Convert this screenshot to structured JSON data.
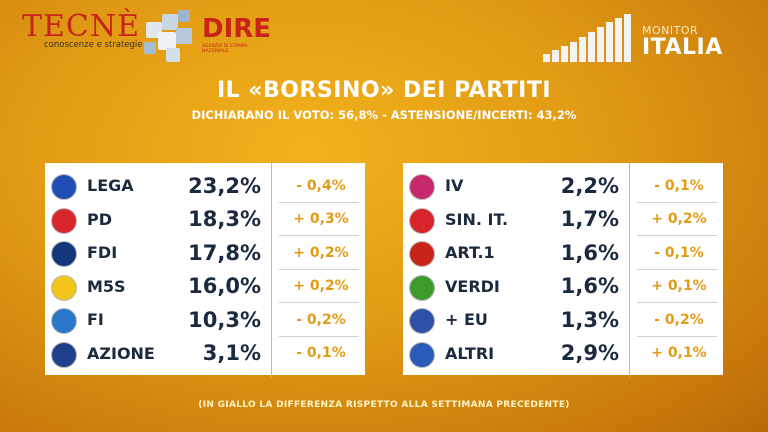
{
  "brand": {
    "tecne_name": "TECNÈ",
    "tecne_tag": "conoscenze e strategie",
    "dire_name": "DIRE",
    "dire_tag": "AGENZIA DI STAMPA NAZIONALE",
    "monitor_small": "MONITOR",
    "monitor_big": "ITALIA"
  },
  "title": "IL «BORSINO» DEI PARTITI",
  "subtitle": "DICHIARANO IL VOTO: 56,8% - ASTENSIONE/INCERTI: 43,2%",
  "left_parties": [
    {
      "name": "LEGA",
      "value": "23,2%",
      "delta": "- 0,4%",
      "logo_color": "#1f4fb5"
    },
    {
      "name": "PD",
      "value": "18,3%",
      "delta": "+ 0,3%",
      "logo_color": "#d8242b"
    },
    {
      "name": "FDI",
      "value": "17,8%",
      "delta": "+ 0,2%",
      "logo_color": "#14367a"
    },
    {
      "name": "M5S",
      "value": "16,0%",
      "delta": "+ 0,2%",
      "logo_color": "#f3c418"
    },
    {
      "name": "FI",
      "value": "10,3%",
      "delta": "- 0,2%",
      "logo_color": "#2a76c8"
    },
    {
      "name": "AZIONE",
      "value": "3,1%",
      "delta": "- 0,1%",
      "logo_color": "#1e3f8c"
    }
  ],
  "right_parties": [
    {
      "name": "IV",
      "value": "2,2%",
      "delta": "- 0,1%",
      "logo_color": "#c72a6b"
    },
    {
      "name": "SIN. IT.",
      "value": "1,7%",
      "delta": "+ 0,2%",
      "logo_color": "#d8242b"
    },
    {
      "name": "ART.1",
      "value": "1,6%",
      "delta": "- 0,1%",
      "logo_color": "#c8241a"
    },
    {
      "name": "VERDI",
      "value": "1,6%",
      "delta": "+ 0,1%",
      "logo_color": "#3e9b2a"
    },
    {
      "name": "+ EU",
      "value": "1,3%",
      "delta": "- 0,2%",
      "logo_color": "#2f4fa8"
    },
    {
      "name": "ALTRI",
      "value": "2,9%",
      "delta": "+ 0,1%",
      "logo_color": "#2a5bb8"
    }
  ],
  "footnote": "(IN GIALLO LA DIFFERENZA RISPETTO ALLA SETTIMANA PRECEDENTE)",
  "colors": {
    "accent": "#e39b16",
    "text_dark": "#1b2a3f",
    "brand_red": "#c8241a"
  }
}
